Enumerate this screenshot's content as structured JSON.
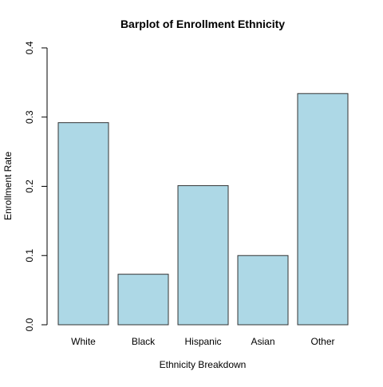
{
  "chart_data": {
    "type": "bar",
    "title": "Barplot of Enrollment Ethnicity",
    "xlabel": "Ethnicity Breakdown",
    "ylabel": "Enrollment Rate",
    "categories": [
      "White",
      "Black",
      "Hispanic",
      "Asian",
      "Other"
    ],
    "values": [
      0.292,
      0.073,
      0.201,
      0.1,
      0.334
    ],
    "ylim": [
      0,
      0.4
    ],
    "yticks": [
      "0.0",
      "0.1",
      "0.2",
      "0.3",
      "0.4"
    ],
    "grid": false,
    "legend": "none",
    "bar_color": "#add8e6",
    "bar_border_color": "#333333"
  }
}
